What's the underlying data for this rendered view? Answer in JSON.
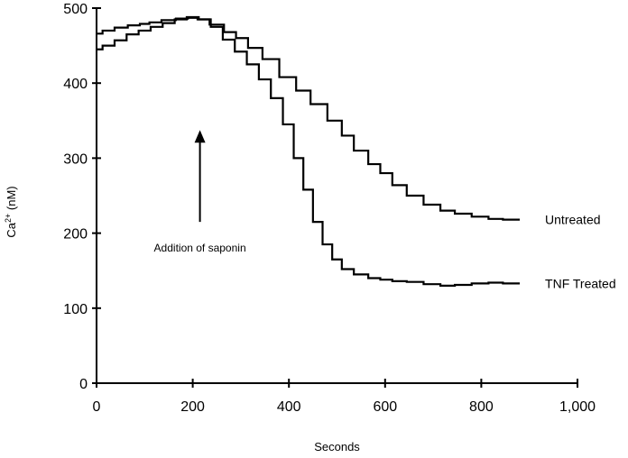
{
  "chart_data": {
    "type": "line",
    "xlabel": "Seconds",
    "ylabel": "Ca",
    "ylabel_sup": "2+",
    "ylabel_unit": " (nM)",
    "xlim": [
      0,
      1000
    ],
    "ylim": [
      0,
      500
    ],
    "x_ticks": [
      0,
      200,
      400,
      600,
      800,
      1000
    ],
    "x_tick_labels": [
      "0",
      "200",
      "400",
      "600",
      "800",
      "1,000"
    ],
    "y_ticks": [
      0,
      100,
      200,
      300,
      400,
      500
    ],
    "y_tick_labels": [
      "0",
      "100",
      "200",
      "300",
      "400",
      "500"
    ],
    "grid": false,
    "series": [
      {
        "name": "Untreated",
        "color": "#000000",
        "x": [
          0,
          25,
          50,
          80,
          100,
          120,
          150,
          180,
          200,
          220,
          250,
          280,
          300,
          330,
          360,
          400,
          430,
          460,
          500,
          520,
          550,
          580,
          600,
          630,
          660,
          700,
          730,
          760,
          800,
          830,
          860,
          880
        ],
        "y": [
          466,
          470,
          474,
          477,
          479,
          481,
          484,
          486,
          487,
          485,
          478,
          468,
          460,
          447,
          432,
          408,
          390,
          372,
          350,
          330,
          310,
          292,
          280,
          264,
          250,
          238,
          230,
          226,
          222,
          219,
          218,
          218
        ]
      },
      {
        "name": "TNF Treated",
        "color": "#000000",
        "x": [
          0,
          25,
          50,
          75,
          100,
          125,
          150,
          175,
          200,
          225,
          250,
          275,
          300,
          325,
          350,
          375,
          400,
          420,
          440,
          460,
          480,
          500,
          520,
          550,
          580,
          600,
          630,
          660,
          700,
          730,
          760,
          800,
          830,
          860,
          880
        ],
        "y": [
          445,
          450,
          457,
          465,
          470,
          475,
          480,
          485,
          488,
          485,
          475,
          458,
          442,
          425,
          405,
          380,
          345,
          300,
          258,
          215,
          185,
          165,
          152,
          145,
          140,
          138,
          136,
          135,
          132,
          130,
          131,
          133,
          134,
          133,
          133
        ]
      }
    ],
    "annotations": [
      {
        "text": "Addition of saponin",
        "arrow_x": 215,
        "arrow_from_y": 215,
        "arrow_to_y": 335
      }
    ]
  }
}
